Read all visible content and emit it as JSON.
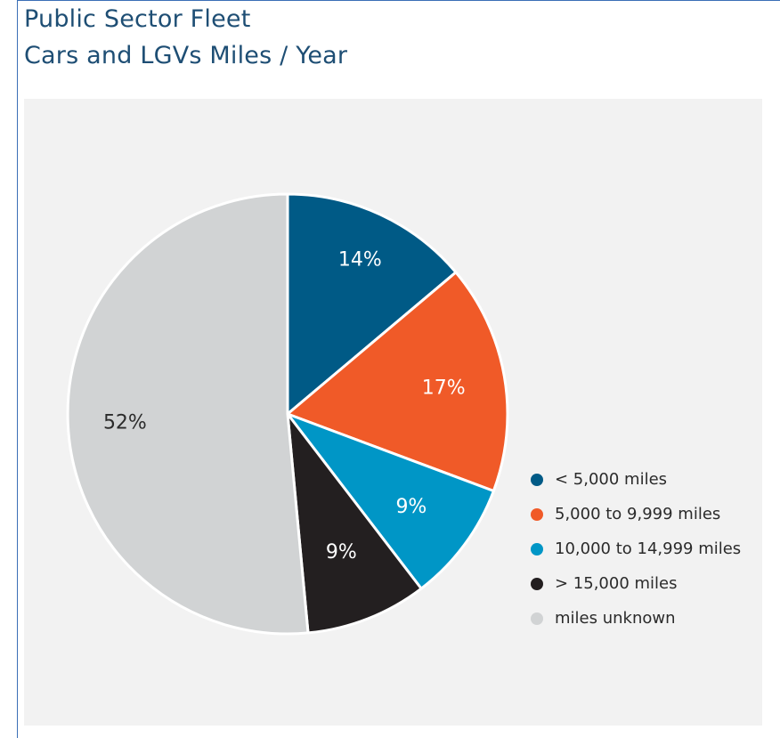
{
  "chart_data": {
    "type": "pie",
    "title": "Public Sector Fleet",
    "subtitle": "Cars and LGVs Miles / Year",
    "slices": [
      {
        "label": "< 5,000 miles",
        "value": 14,
        "value_label": "14%",
        "color": "#005a86"
      },
      {
        "label": "5,000 to 9,999 miles",
        "value": 17,
        "value_label": "17%",
        "color": "#f05a28"
      },
      {
        "label": "10,000 to 14,999 miles",
        "value": 9,
        "value_label": "9%",
        "color": "#0096c6"
      },
      {
        "label": "> 15,000 miles",
        "value": 9,
        "value_label": "9%",
        "color": "#231f20"
      },
      {
        "label": "miles unknown",
        "value": 52,
        "value_label": "52%",
        "color": "#d1d3d4"
      }
    ],
    "legend_position": "right",
    "background": "#f2f2f2",
    "title_color": "#1e4e74"
  }
}
